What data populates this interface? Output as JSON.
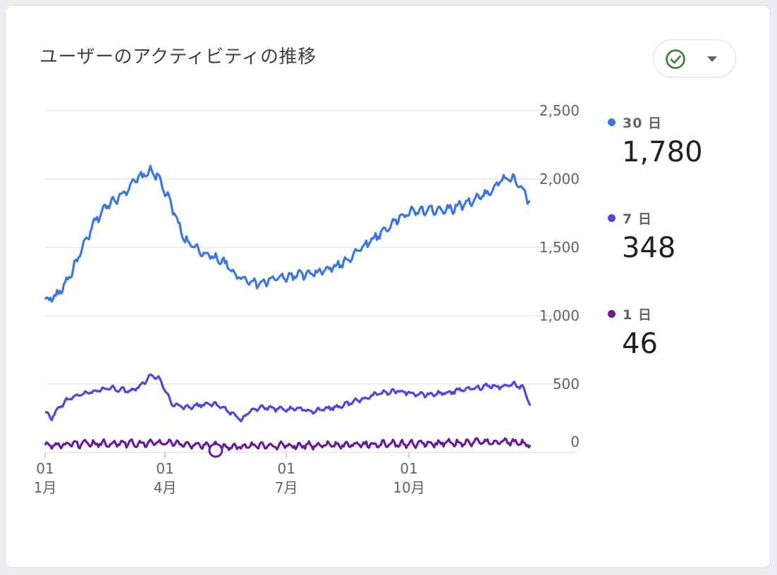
{
  "card": {
    "title": "ユーザーのアクティビティの推移"
  },
  "status_button": {
    "icon": "check-circle-icon",
    "caret_icon": "dropdown-caret-icon"
  },
  "legend": [
    {
      "label": "30 日",
      "value": "1,780",
      "color": "#3b77e0"
    },
    {
      "label": "7 日",
      "value": "348",
      "color": "#4a48e0"
    },
    {
      "label": "1 日",
      "value": "46",
      "color": "#6a1b9a"
    }
  ],
  "chart_data": {
    "type": "line",
    "y_ticks": [
      "0",
      "500",
      "1,000",
      "1,500",
      "2,000",
      "2,500"
    ],
    "y_tick_values": [
      0,
      500,
      1000,
      1500,
      2000,
      2500
    ],
    "ylim": [
      0,
      2500
    ],
    "x_ticks": [
      {
        "day": "01",
        "month": "1月",
        "index": 0
      },
      {
        "day": "01",
        "month": "4月",
        "index": 90
      },
      {
        "day": "01",
        "month": "7月",
        "index": 181
      },
      {
        "day": "01",
        "month": "10月",
        "index": 273
      }
    ],
    "n_points": 365,
    "grid": true,
    "legend_position": "right",
    "series": [
      {
        "name": "30 日",
        "color": "#3b77e0",
        "anchors": [
          [
            0,
            1110
          ],
          [
            10,
            1150
          ],
          [
            20,
            1300
          ],
          [
            30,
            1500
          ],
          [
            40,
            1700
          ],
          [
            50,
            1820
          ],
          [
            60,
            1880
          ],
          [
            70,
            1980
          ],
          [
            80,
            2040
          ],
          [
            85,
            2060
          ],
          [
            90,
            2000
          ],
          [
            100,
            1800
          ],
          [
            110,
            1560
          ],
          [
            120,
            1480
          ],
          [
            130,
            1440
          ],
          [
            140,
            1400
          ],
          [
            150,
            1300
          ],
          [
            160,
            1260
          ],
          [
            170,
            1230
          ],
          [
            180,
            1270
          ],
          [
            190,
            1280
          ],
          [
            200,
            1300
          ],
          [
            210,
            1300
          ],
          [
            220,
            1330
          ],
          [
            230,
            1360
          ],
          [
            240,
            1420
          ],
          [
            250,
            1500
          ],
          [
            260,
            1570
          ],
          [
            270,
            1640
          ],
          [
            280,
            1720
          ],
          [
            290,
            1760
          ],
          [
            300,
            1770
          ],
          [
            310,
            1780
          ],
          [
            320,
            1780
          ],
          [
            330,
            1820
          ],
          [
            340,
            1850
          ],
          [
            350,
            1900
          ],
          [
            360,
            1990
          ],
          [
            368,
            2010
          ],
          [
            376,
            1940
          ],
          [
            383,
            1820
          ]
        ],
        "noise": 40
      },
      {
        "name": "7 日",
        "color": "#4a48e0",
        "anchors": [
          [
            0,
            290
          ],
          [
            5,
            250
          ],
          [
            12,
            340
          ],
          [
            20,
            400
          ],
          [
            35,
            440
          ],
          [
            50,
            470
          ],
          [
            60,
            460
          ],
          [
            68,
            450
          ],
          [
            75,
            490
          ],
          [
            85,
            570
          ],
          [
            90,
            540
          ],
          [
            95,
            450
          ],
          [
            100,
            360
          ],
          [
            110,
            330
          ],
          [
            120,
            340
          ],
          [
            130,
            360
          ],
          [
            140,
            330
          ],
          [
            150,
            270
          ],
          [
            155,
            230
          ],
          [
            160,
            300
          ],
          [
            170,
            330
          ],
          [
            180,
            320
          ],
          [
            190,
            310
          ],
          [
            200,
            320
          ],
          [
            210,
            300
          ],
          [
            220,
            320
          ],
          [
            230,
            330
          ],
          [
            240,
            360
          ],
          [
            250,
            390
          ],
          [
            260,
            420
          ],
          [
            270,
            440
          ],
          [
            280,
            450
          ],
          [
            290,
            430
          ],
          [
            300,
            420
          ],
          [
            310,
            430
          ],
          [
            320,
            440
          ],
          [
            330,
            460
          ],
          [
            340,
            470
          ],
          [
            350,
            490
          ],
          [
            360,
            480
          ],
          [
            370,
            500
          ],
          [
            378,
            470
          ],
          [
            383,
            350
          ]
        ],
        "noise": 20
      },
      {
        "name": "1 日",
        "color": "#6a1b9a",
        "anchors": [
          [
            0,
            50
          ],
          [
            50,
            65
          ],
          [
            90,
            70
          ],
          [
            120,
            55
          ],
          [
            150,
            40
          ],
          [
            180,
            50
          ],
          [
            220,
            55
          ],
          [
            260,
            60
          ],
          [
            300,
            65
          ],
          [
            330,
            70
          ],
          [
            360,
            80
          ],
          [
            383,
            60
          ]
        ],
        "noise": 30
      }
    ],
    "highlight": {
      "series": "1 日",
      "index": 128,
      "value": 15
    }
  }
}
